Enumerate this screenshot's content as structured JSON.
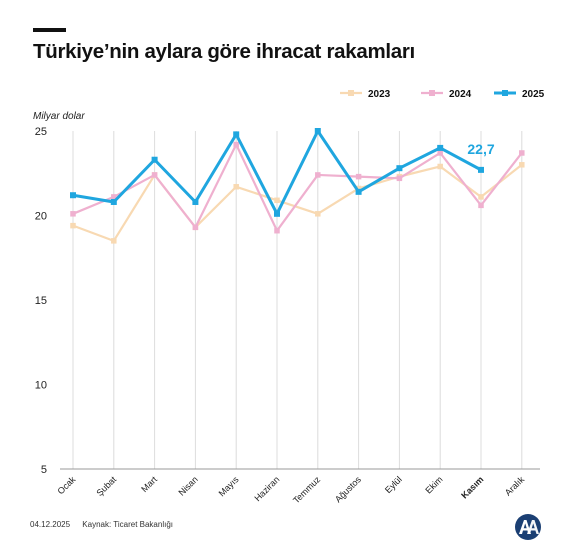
{
  "title": "Türkiye’nin aylara göre ihracat rakamları",
  "footer": {
    "date": "04.12.2025",
    "source": "Kaynak: Ticaret Bakanlığı"
  },
  "colors": {
    "2023": "#f8d9b2",
    "2024": "#efb0cf",
    "2025": "#1fa6df",
    "grid": "#dcdcdc",
    "axis": "#999999"
  },
  "logo_icon": "aa-logo-icon",
  "chart_data": {
    "type": "line",
    "ylabel": "Milyar dolar",
    "ylim": [
      5,
      25
    ],
    "yticks": [
      5,
      10,
      15,
      20,
      25
    ],
    "categories": [
      "Ocak",
      "Şubat",
      "Mart",
      "Nisan",
      "Mayıs",
      "Haziran",
      "Temmuz",
      "Ağustos",
      "Eylül",
      "Ekim",
      "Kasım",
      "Aralık"
    ],
    "highlight_category": "Kasım",
    "legend_position": "top-right",
    "grid": "vertical",
    "series": [
      {
        "name": "2023",
        "values": [
          19.4,
          18.5,
          22.4,
          19.3,
          21.7,
          20.9,
          20.1,
          21.6,
          22.3,
          22.9,
          21.1,
          23.0
        ]
      },
      {
        "name": "2024",
        "values": [
          20.1,
          21.1,
          22.4,
          19.3,
          24.2,
          19.1,
          22.4,
          22.3,
          22.2,
          23.7,
          20.6,
          23.7
        ]
      },
      {
        "name": "2025",
        "values": [
          21.2,
          20.8,
          23.3,
          20.8,
          24.8,
          20.1,
          25.0,
          21.4,
          22.8,
          24.0,
          22.7,
          null
        ]
      }
    ],
    "annotations": [
      {
        "series": "2025",
        "category": "Kasım",
        "text": "22,7"
      }
    ]
  }
}
